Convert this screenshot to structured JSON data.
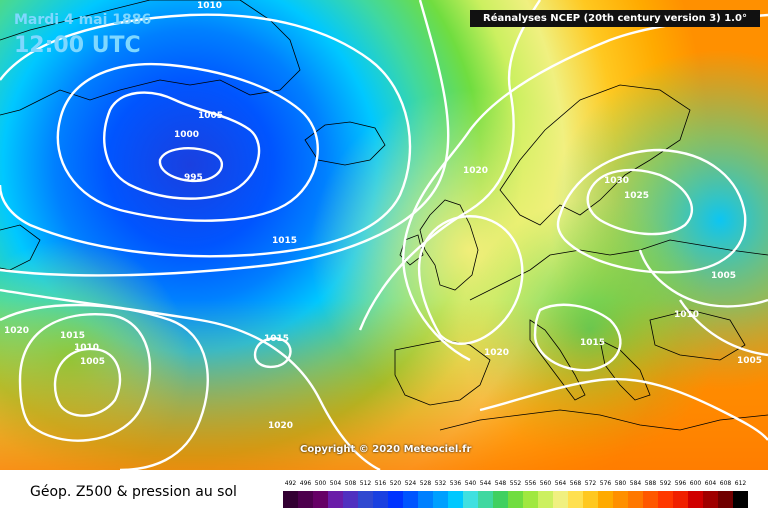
{
  "header": {
    "date": "Mardi 4 mai 1886",
    "time": "12:00 UTC",
    "source": "Réanalyses NCEP (20th century version 3) 1.0°",
    "copyright": "Copyright © 2020 Meteociel.fr"
  },
  "isobar_labels": [
    "1010",
    "1005",
    "1000",
    "995",
    "1020",
    "1030",
    "1025",
    "1015",
    "1020",
    "1015",
    "1010",
    "1005",
    "1015",
    "1005",
    "1020",
    "1015",
    "1010",
    "1005",
    "1020",
    "1015"
  ],
  "legend": {
    "title": "Géop. Z500 & pression au sol",
    "scale_values": [
      "492",
      "496",
      "500",
      "504",
      "508",
      "512",
      "516",
      "520",
      "524",
      "528",
      "532",
      "536",
      "540",
      "544",
      "548",
      "552",
      "556",
      "560",
      "564",
      "568",
      "572",
      "576",
      "580",
      "584",
      "588",
      "592",
      "596",
      "600",
      "604",
      "608",
      "612"
    ],
    "scale_colors": [
      "#330033",
      "#4d004d",
      "#660066",
      "#6a1ca8",
      "#5030c0",
      "#3048d0",
      "#1a40e0",
      "#0033ff",
      "#0055ff",
      "#0080ff",
      "#00a0ff",
      "#00c8ff",
      "#40e0e0",
      "#40d8a0",
      "#40d060",
      "#70dd40",
      "#a0e840",
      "#ccf060",
      "#f0f080",
      "#ffe050",
      "#ffc820",
      "#ffaa00",
      "#ff9000",
      "#ff7800",
      "#ff5800",
      "#ff3800",
      "#f02000",
      "#d00000",
      "#a00000",
      "#700000",
      "#000000"
    ]
  }
}
